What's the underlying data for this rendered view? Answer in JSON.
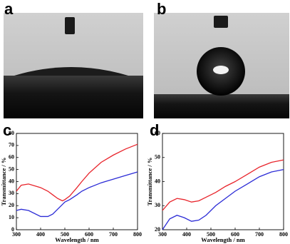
{
  "panels": [
    {
      "label": "a"
    },
    {
      "label": "b"
    }
  ],
  "chart_data": [
    {
      "type": "line",
      "panel_label": "c",
      "x_label": "Wavelength / nm",
      "y_label": "Transmittance / %",
      "x": [
        300,
        320,
        350,
        400,
        430,
        450,
        470,
        490,
        500,
        520,
        550,
        570,
        600,
        650,
        700,
        750,
        800
      ],
      "series": [
        {
          "color": "#e8242b",
          "values": [
            32,
            37,
            38,
            35,
            32,
            29,
            26,
            24,
            25,
            28,
            35,
            40,
            47,
            56,
            62,
            67,
            71
          ]
        },
        {
          "color": "#2b2bd6",
          "values": [
            16,
            17,
            16,
            11,
            11,
            13,
            17,
            21,
            23,
            25,
            29,
            32,
            35,
            39,
            42,
            45,
            48
          ]
        }
      ],
      "xlim": [
        300,
        800
      ],
      "xticks": [
        300,
        400,
        500,
        600,
        700,
        800
      ],
      "ylim": [
        0,
        80
      ],
      "yticks": [
        0,
        10,
        20,
        30,
        40,
        50,
        60,
        70,
        80
      ]
    },
    {
      "type": "line",
      "panel_label": "d",
      "x_label": "Wavelength / nm",
      "y_label": "Transmittance / %",
      "x": [
        300,
        330,
        360,
        390,
        420,
        450,
        480,
        520,
        560,
        600,
        650,
        700,
        750,
        800
      ],
      "series": [
        {
          "color": "#e8242b",
          "values": [
            28,
            31.5,
            33,
            32.5,
            31.5,
            32,
            33.5,
            35.5,
            38,
            40,
            43,
            46,
            48,
            49
          ]
        },
        {
          "color": "#2b2bd6",
          "values": [
            20,
            24.5,
            26,
            25,
            23.5,
            24,
            26,
            30,
            33,
            36,
            39,
            42,
            44,
            45
          ]
        }
      ],
      "xlim": [
        300,
        800
      ],
      "xticks": [
        300,
        400,
        500,
        600,
        700,
        800
      ],
      "ylim": [
        20,
        60
      ],
      "yticks": [
        20,
        30,
        40,
        50,
        60
      ]
    }
  ]
}
